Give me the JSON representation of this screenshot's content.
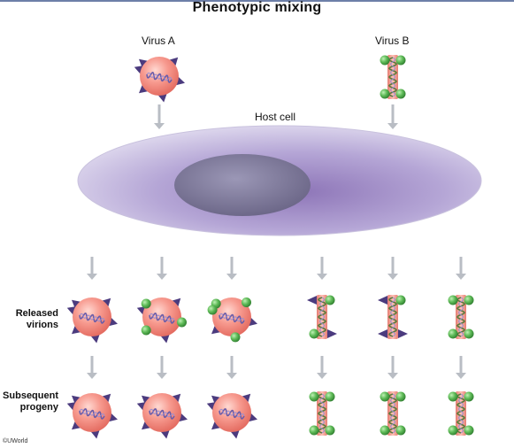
{
  "title": "Phenotypic mixing",
  "labels": {
    "virus_a": "Virus A",
    "virus_b": "Virus B",
    "host_cell": "Host cell",
    "released_line1": "Released",
    "released_line2": "virions",
    "subsequent_line1": "Subsequent",
    "subsequent_line2": "progeny",
    "copyright": "©UWorld"
  },
  "colors": {
    "capsid_pink": "#f4938a",
    "spike_purple": "#4b3b7e",
    "spike_green": "#4fa84a",
    "genome_purple": "#6a5ca8",
    "arrow_gray": "#b9bdc4",
    "cell_lavender": "#b4a6d3",
    "nucleus": "#7f7a9c"
  }
}
